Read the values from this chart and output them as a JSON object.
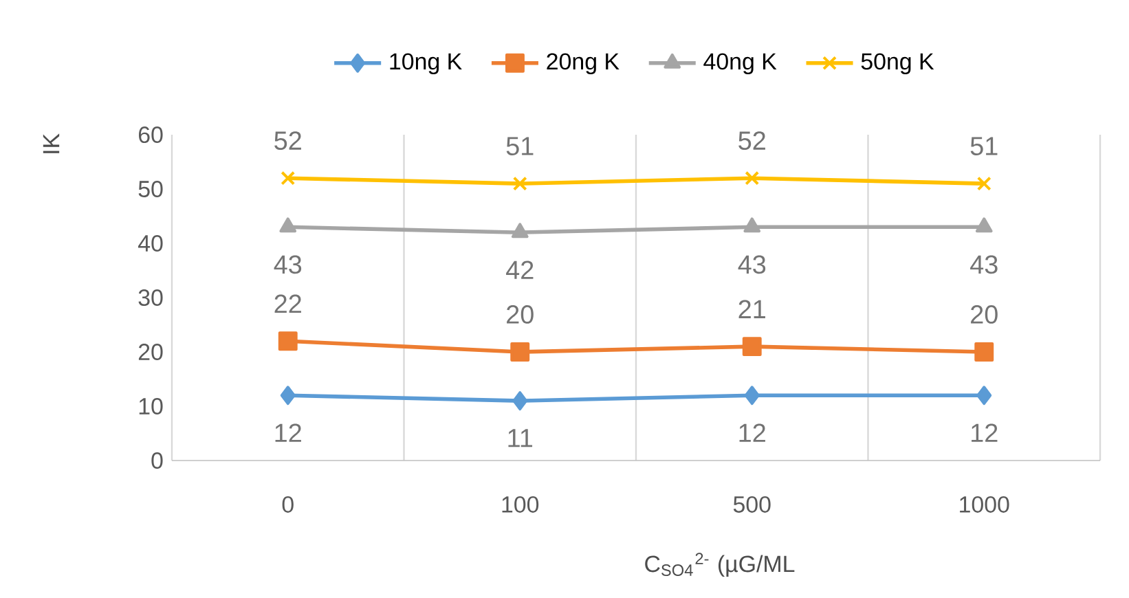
{
  "chart_data": {
    "type": "line",
    "xlabel": "C$_{SO4}$$^{2-}$ (µG/ML",
    "ylabel": "IK",
    "categories": [
      "0",
      "100",
      "500",
      "1000"
    ],
    "series": [
      {
        "name": "10ng K",
        "color": "#5b9bd5",
        "marker": "diamond",
        "values": [
          12,
          11,
          12,
          12
        ]
      },
      {
        "name": "20ng K",
        "color": "#ed7d31",
        "marker": "square",
        "values": [
          22,
          20,
          21,
          20
        ]
      },
      {
        "name": "40ng K",
        "color": "#a5a5a5",
        "marker": "triangle",
        "values": [
          43,
          42,
          43,
          43
        ]
      },
      {
        "name": "50ng K",
        "color": "#ffc000",
        "marker": "cross",
        "values": [
          52,
          51,
          52,
          51
        ]
      }
    ],
    "ylim": [
      0,
      60
    ],
    "yticks": [
      0,
      10,
      20,
      30,
      40,
      50,
      60
    ],
    "grid": "x",
    "legend": "top",
    "data_labels": true
  }
}
